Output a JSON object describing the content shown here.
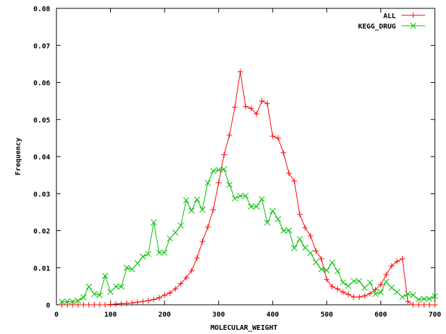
{
  "chart_data": {
    "type": "line",
    "title": "",
    "xlabel": "MOLECULAR_WEIGHT",
    "ylabel": "Frequency",
    "xlim": [
      0,
      700
    ],
    "ylim": [
      0,
      0.08
    ],
    "xticks": [
      "0",
      "100",
      "200",
      "300",
      "400",
      "500",
      "600",
      "700"
    ],
    "yticks": [
      "0",
      "0.01",
      "0.02",
      "0.03",
      "0.04",
      "0.05",
      "0.06",
      "0.07",
      "0.08"
    ],
    "grid": false,
    "legend_position": "top-right",
    "x": [
      10,
      20,
      30,
      40,
      50,
      60,
      70,
      80,
      90,
      100,
      110,
      120,
      130,
      140,
      150,
      160,
      170,
      180,
      190,
      200,
      210,
      220,
      230,
      240,
      250,
      260,
      270,
      280,
      290,
      300,
      310,
      320,
      330,
      340,
      350,
      360,
      370,
      380,
      390,
      400,
      410,
      420,
      430,
      440,
      450,
      460,
      470,
      480,
      490,
      500,
      510,
      520,
      530,
      540,
      550,
      560,
      570,
      580,
      590,
      600,
      610,
      620,
      630,
      640,
      650,
      660,
      670,
      680,
      690,
      700
    ],
    "series": [
      {
        "name": "ALL",
        "color": "#ff0000",
        "marker": "plus",
        "values": [
          0,
          0,
          0,
          0,
          0,
          0,
          0,
          0,
          0,
          0.0001,
          0.0002,
          0.0003,
          0.0004,
          0.0005,
          0.0007,
          0.0009,
          0.0011,
          0.0014,
          0.0019,
          0.0026,
          0.0032,
          0.0043,
          0.0057,
          0.0073,
          0.0092,
          0.0126,
          0.0171,
          0.021,
          0.0256,
          0.0329,
          0.0405,
          0.0458,
          0.0533,
          0.0629,
          0.0535,
          0.053,
          0.0515,
          0.055,
          0.0543,
          0.0455,
          0.045,
          0.041,
          0.0355,
          0.0334,
          0.0244,
          0.0208,
          0.0186,
          0.0145,
          0.0124,
          0.0068,
          0.0049,
          0.0043,
          0.0034,
          0.0028,
          0.0021,
          0.0021,
          0.0024,
          0.003,
          0.0041,
          0.0054,
          0.0081,
          0.0105,
          0.0117,
          0.0124,
          0.0009,
          0,
          0,
          0,
          0,
          0
        ]
      },
      {
        "name": "KEGG_DRUG",
        "color": "#00c000",
        "marker": "cross",
        "values": [
          0.0008,
          0.0009,
          0.0009,
          0.0011,
          0.002,
          0.0049,
          0.0029,
          0.0026,
          0.0078,
          0.0035,
          0.0049,
          0.0049,
          0.01,
          0.0096,
          0.0112,
          0.013,
          0.0137,
          0.0222,
          0.0141,
          0.0141,
          0.0179,
          0.0195,
          0.0214,
          0.0282,
          0.0254,
          0.0284,
          0.0257,
          0.0329,
          0.0361,
          0.0364,
          0.0366,
          0.0324,
          0.0287,
          0.0294,
          0.0294,
          0.0265,
          0.0265,
          0.0285,
          0.0222,
          0.0253,
          0.0231,
          0.02,
          0.0201,
          0.0153,
          0.0177,
          0.0154,
          0.014,
          0.0115,
          0.0096,
          0.0093,
          0.0114,
          0.0091,
          0.006,
          0.0051,
          0.0064,
          0.0064,
          0.0046,
          0.006,
          0.0029,
          0.0034,
          0.0062,
          0.0046,
          0.0034,
          0.0021,
          0.0029,
          0.0026,
          0.0014,
          0.0016,
          0.0016,
          0.0023
        ]
      }
    ]
  }
}
